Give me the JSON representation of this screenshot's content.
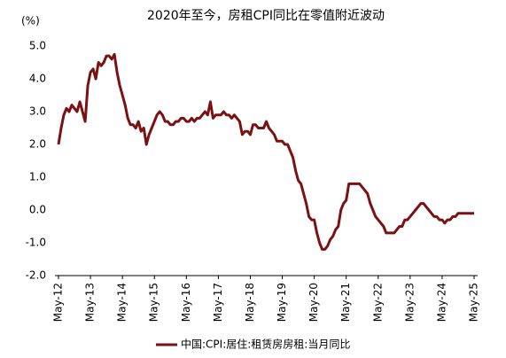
{
  "chart_data": {
    "type": "line",
    "title": "2020年至今，房租CPI同比在零值附近波动",
    "y_unit_label": "(%)",
    "categories": [
      "May-12",
      null,
      null,
      null,
      null,
      null,
      null,
      null,
      null,
      null,
      null,
      null,
      "May-13",
      null,
      null,
      null,
      null,
      null,
      null,
      null,
      null,
      null,
      null,
      null,
      "May-14",
      null,
      null,
      null,
      null,
      null,
      null,
      null,
      null,
      null,
      null,
      null,
      "May-15",
      null,
      null,
      null,
      null,
      null,
      null,
      null,
      null,
      null,
      null,
      null,
      "May-16",
      null,
      null,
      null,
      null,
      null,
      null,
      null,
      null,
      null,
      null,
      null,
      "May-17",
      null,
      null,
      null,
      null,
      null,
      null,
      null,
      null,
      null,
      null,
      null,
      "May-18",
      null,
      null,
      null,
      null,
      null,
      null,
      null,
      null,
      null,
      null,
      null,
      "May-19",
      null,
      null,
      null,
      null,
      null,
      null,
      null,
      null,
      null,
      null,
      null,
      "May-20",
      null,
      null,
      null,
      null,
      null,
      null,
      null,
      null,
      null,
      null,
      null,
      "May-21",
      null,
      null,
      null,
      null,
      null,
      null,
      null,
      null,
      null,
      null,
      null,
      "May-22",
      null,
      null,
      null,
      null,
      null,
      null,
      null,
      null,
      null,
      null,
      null,
      "May-23",
      null,
      null,
      null,
      null,
      null,
      null,
      null,
      null,
      null,
      null,
      null,
      "May-24",
      null,
      null,
      null,
      null,
      null,
      null,
      null,
      null,
      null,
      null,
      null,
      "May-25"
    ],
    "series": [
      {
        "name": "中国:CPI:居住:租赁房房租:当月同比",
        "color": "#7b1113",
        "values": [
          2.0,
          2.5,
          2.9,
          3.1,
          3.0,
          3.2,
          3.1,
          3.0,
          3.3,
          3.0,
          2.7,
          3.8,
          4.2,
          4.3,
          4.0,
          4.5,
          4.4,
          4.5,
          4.7,
          4.7,
          4.6,
          4.75,
          4.2,
          3.8,
          3.5,
          3.2,
          2.8,
          2.6,
          2.6,
          2.5,
          2.7,
          2.4,
          2.5,
          2.0,
          2.3,
          2.5,
          2.7,
          2.9,
          3.0,
          2.9,
          2.7,
          2.7,
          2.6,
          2.6,
          2.7,
          2.7,
          2.8,
          2.8,
          2.7,
          2.7,
          2.8,
          2.7,
          2.8,
          2.8,
          2.9,
          3.0,
          2.9,
          3.3,
          2.8,
          2.9,
          2.9,
          2.9,
          3.0,
          2.9,
          2.9,
          2.8,
          2.9,
          2.8,
          2.7,
          2.3,
          2.4,
          2.4,
          2.3,
          2.6,
          2.6,
          2.5,
          2.5,
          2.5,
          2.7,
          2.5,
          2.4,
          2.3,
          2.1,
          2.1,
          2.1,
          2.0,
          2.0,
          1.8,
          1.6,
          1.2,
          0.9,
          0.8,
          0.5,
          0.2,
          -0.2,
          -0.3,
          -0.3,
          -0.7,
          -1.0,
          -1.2,
          -1.2,
          -1.1,
          -0.9,
          -0.8,
          -0.6,
          -0.5,
          0.0,
          0.2,
          0.3,
          0.8,
          0.8,
          0.8,
          0.8,
          0.8,
          0.7,
          0.6,
          0.5,
          0.2,
          0.0,
          -0.2,
          -0.3,
          -0.4,
          -0.5,
          -0.7,
          -0.7,
          -0.7,
          -0.7,
          -0.6,
          -0.5,
          -0.5,
          -0.3,
          -0.3,
          -0.2,
          -0.1,
          0.0,
          0.1,
          0.2,
          0.2,
          0.1,
          0.0,
          -0.1,
          -0.2,
          -0.2,
          -0.3,
          -0.3,
          -0.4,
          -0.3,
          -0.3,
          -0.2,
          -0.2,
          -0.1,
          -0.1,
          -0.1,
          -0.1,
          -0.1,
          -0.1,
          -0.1
        ]
      }
    ],
    "ylim": [
      -2,
      5
    ],
    "yticks": [
      {
        "value": -2,
        "label": "-2.0"
      },
      {
        "value": -1,
        "label": "-1.0"
      },
      {
        "value": 0,
        "label": "0.0"
      },
      {
        "value": 1,
        "label": "1.0"
      },
      {
        "value": 2,
        "label": "2.0"
      },
      {
        "value": 3,
        "label": "3.0"
      },
      {
        "value": 4,
        "label": "4.0"
      },
      {
        "value": 5,
        "label": "5.0"
      }
    ],
    "grid": false,
    "legend": "bottom"
  }
}
